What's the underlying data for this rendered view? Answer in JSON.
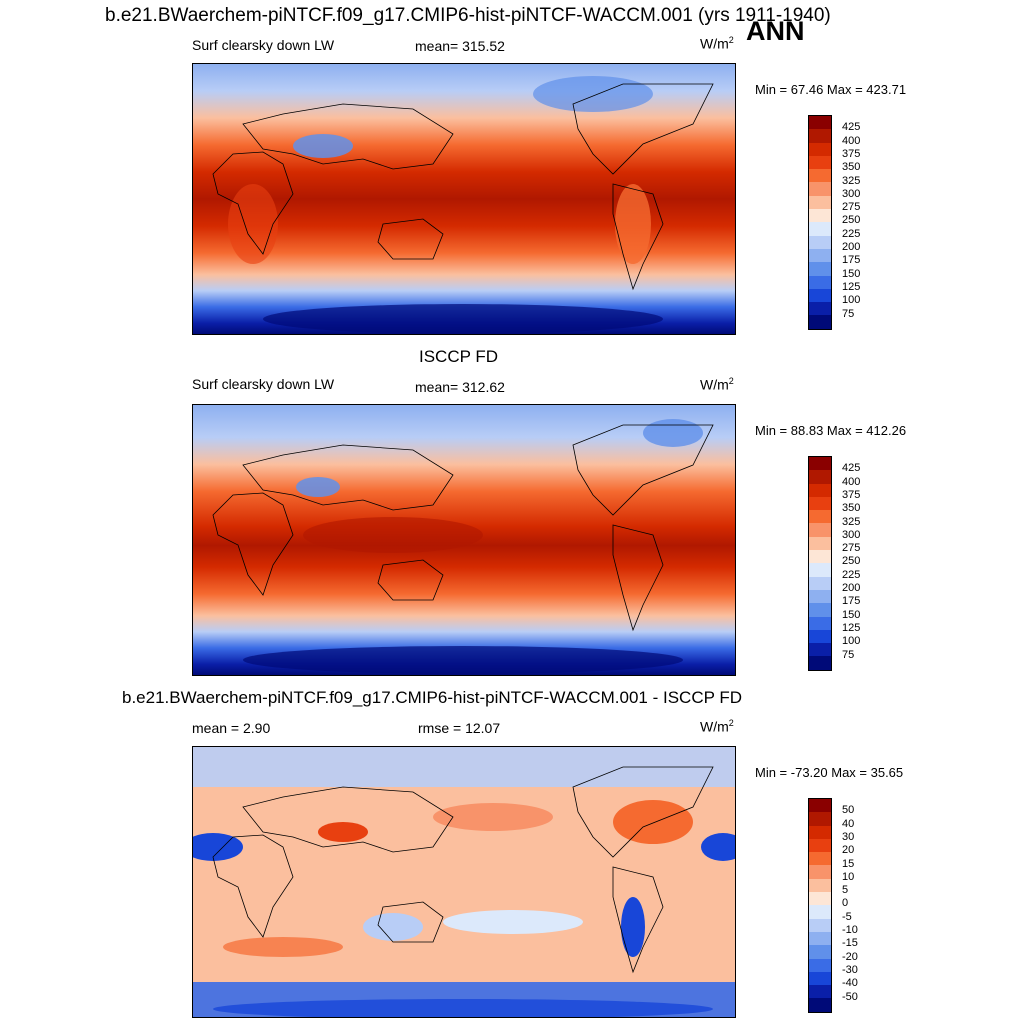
{
  "figure": {
    "season": "ANN"
  },
  "panels": [
    {
      "title": "b.e21.BWaerchem-piNTCF.f09_g17.CMIP6-hist-piNTCF-WACCM.001 (yrs 1911-1940)",
      "left_label": "Surf clearsky down LW",
      "stat_label": "mean= 315.52",
      "units": "W/m",
      "units_sup": "2",
      "minmax": "Min =  67.46 Max = 423.71",
      "palette": "abs",
      "colorbar_labels": [
        "425",
        "400",
        "375",
        "350",
        "325",
        "300",
        "275",
        "250",
        "225",
        "200",
        "175",
        "150",
        "125",
        "100",
        "75"
      ]
    },
    {
      "title": "ISCCP FD",
      "left_label": "Surf clearsky down LW",
      "stat_label": "mean= 312.62",
      "units": "W/m",
      "units_sup": "2",
      "minmax": "Min =  88.83 Max = 412.26",
      "palette": "abs",
      "colorbar_labels": [
        "425",
        "400",
        "375",
        "350",
        "325",
        "300",
        "275",
        "250",
        "225",
        "200",
        "175",
        "150",
        "125",
        "100",
        "75"
      ]
    },
    {
      "title": "b.e21.BWaerchem-piNTCF.f09_g17.CMIP6-hist-piNTCF-WACCM.001 - ISCCP FD",
      "left_label": "mean =   2.90",
      "stat_label": "rmse =  12.07",
      "units": "W/m",
      "units_sup": "2",
      "minmax": "Min = -73.20 Max =  35.65",
      "palette": "diff",
      "colorbar_labels": [
        "50",
        "40",
        "30",
        "20",
        "15",
        "10",
        "5",
        "0",
        "-5",
        "-10",
        "-15",
        "-20",
        "-30",
        "-40",
        "-50"
      ]
    }
  ],
  "colors": {
    "abs_palette": [
      "#8a0000",
      "#b01800",
      "#d42a00",
      "#e84010",
      "#f56a30",
      "#f8936a",
      "#fbbf9e",
      "#fde6d6",
      "#dce9fb",
      "#b8cdf6",
      "#8eb0f0",
      "#6090ea",
      "#3a6ce6",
      "#1846d8",
      "#0a1fa8",
      "#000a78"
    ],
    "diff_palette": [
      "#8a0000",
      "#b01800",
      "#d42a00",
      "#e84010",
      "#f56a30",
      "#f8936a",
      "#fbbf9e",
      "#fde6d6",
      "#dce9fb",
      "#b8cdf6",
      "#8eb0f0",
      "#6090ea",
      "#3a6ce6",
      "#1846d8",
      "#0a1fa8",
      "#000a78"
    ]
  }
}
